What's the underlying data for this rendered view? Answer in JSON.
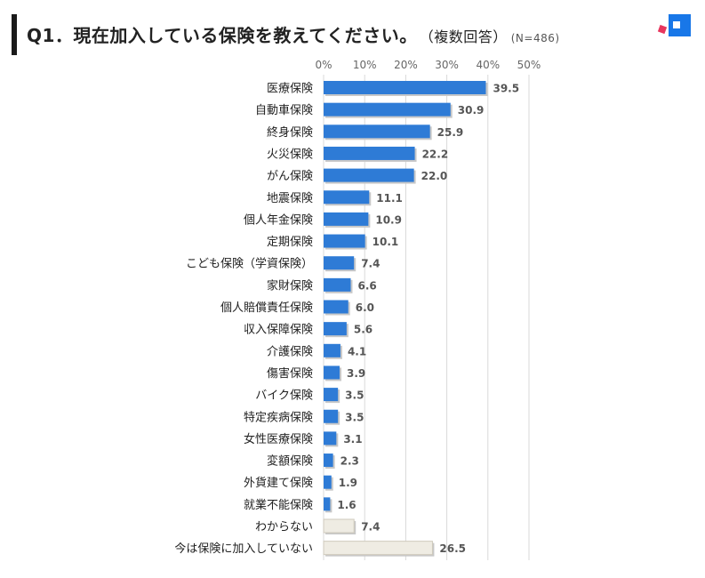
{
  "header": {
    "title": "Q1．現在加入している保険を教えてください。",
    "subtitle": "（複数回答）",
    "sample": "(N=486)"
  },
  "chart_data": {
    "type": "bar",
    "orientation": "horizontal",
    "title": "Q1．現在加入している保険を教えてください。（複数回答）(N=486)",
    "xlim": [
      0,
      50
    ],
    "x_ticks": [
      "0%",
      "10%",
      "20%",
      "30%",
      "40%",
      "50%"
    ],
    "grid": true,
    "categories": [
      "医療保険",
      "自動車保険",
      "終身保険",
      "火災保険",
      "がん保険",
      "地震保険",
      "個人年金保険",
      "定期保険",
      "こども保険（学資保険）",
      "家財保険",
      "個人賠償責任保険",
      "収入保障保険",
      "介護保険",
      "傷害保険",
      "バイク保険",
      "特定疾病保険",
      "女性医療保険",
      "変額保険",
      "外貨建て保険",
      "就業不能保険",
      "わからない",
      "今は保険に加入していない"
    ],
    "values": [
      39.5,
      30.9,
      25.9,
      22.2,
      22.0,
      11.1,
      10.9,
      10.1,
      7.4,
      6.6,
      6.0,
      5.6,
      4.1,
      3.9,
      3.5,
      3.5,
      3.1,
      2.3,
      1.9,
      1.6,
      7.4,
      26.5
    ],
    "value_labels": [
      "39.5",
      "30.9",
      "25.9",
      "22.2",
      "22.0",
      "11.1",
      "10.9",
      "10.1",
      "7.4",
      "6.6",
      "6.0",
      "5.6",
      "4.1",
      "3.9",
      "3.5",
      "3.5",
      "3.1",
      "2.3",
      "1.9",
      "1.6",
      "7.4",
      "26.5"
    ],
    "colors": {
      "main": "#2e7bd6",
      "other": "#efece3",
      "other_border": "#cfcabc",
      "grid": "#d9d9d9",
      "label": "#555555"
    }
  }
}
